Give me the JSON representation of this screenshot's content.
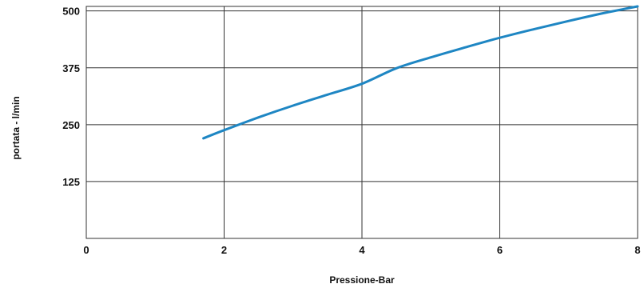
{
  "chart_data": {
    "type": "line",
    "title": "",
    "xlabel": "Pressione-Bar",
    "ylabel": "portata - l/min",
    "xlim": [
      0,
      8
    ],
    "ylim": [
      0,
      510
    ],
    "x_ticks": [
      "0",
      "2",
      "4",
      "6",
      "8"
    ],
    "y_ticks": [
      "125",
      "250",
      "375",
      "500"
    ],
    "grid": true,
    "legend": "none",
    "colors": {
      "series": "#1e86c3",
      "grid": "#333333",
      "text": "#111111"
    },
    "series": [
      {
        "x": [
          1.7,
          2.0,
          2.5,
          3.0,
          3.5,
          4.0,
          4.5,
          5.0,
          5.5,
          6.0,
          6.5,
          7.0,
          7.5,
          8.0
        ],
        "y": [
          220,
          238,
          266,
          292,
          316,
          340,
          374,
          398,
          420,
          441,
          460,
          478,
          495,
          510
        ]
      }
    ]
  }
}
